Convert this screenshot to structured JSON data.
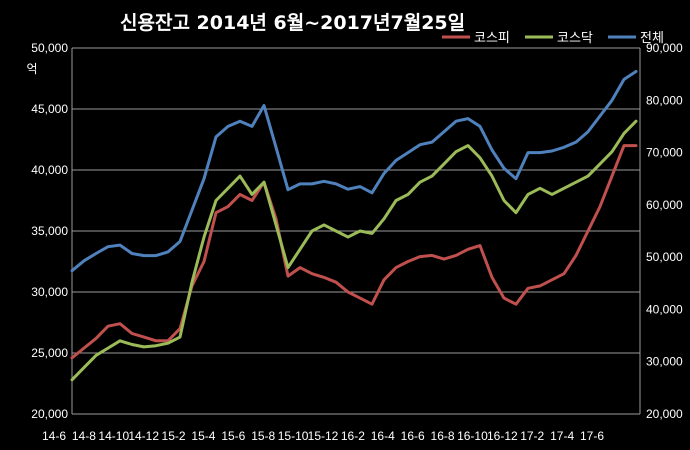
{
  "chart_data": {
    "type": "line",
    "title": "신용잔고 2014년 6월~2017년7월25일",
    "left_axis_unit": "억",
    "y_left": {
      "min": 20000,
      "max": 50000,
      "step": 5000,
      "tick_labels": [
        "20,000",
        "25,000",
        "30,000",
        "35,000",
        "40,000",
        "45,000",
        "50,000"
      ]
    },
    "y_right": {
      "min": 20000,
      "max": 90000,
      "step": 10000,
      "tick_labels": [
        "20,000",
        "30,000",
        "40,000",
        "50,000",
        "60,000",
        "70,000",
        "80,000",
        "90,000"
      ]
    },
    "x_ticks": [
      "14-6",
      "14-8",
      "14-10",
      "14-12",
      "15-2",
      "15-4",
      "15-6",
      "15-8",
      "15-10",
      "15-12",
      "16-2",
      "16-4",
      "16-6",
      "16-8",
      "16-10",
      "16-12",
      "17-2",
      "17-4",
      "17-6"
    ],
    "grid": true,
    "legend_position": "top-right",
    "series": [
      {
        "name": "코스피",
        "axis": "left",
        "color": "#c0504d",
        "values": [
          24600,
          25400,
          26200,
          27200,
          27400,
          26600,
          26300,
          26000,
          26000,
          27000,
          30500,
          32500,
          36500,
          37000,
          38000,
          37500,
          39000,
          36000,
          31300,
          32000,
          31500,
          31200,
          30800,
          30000,
          29500,
          29000,
          31000,
          32000,
          32500,
          32900,
          33000,
          32700,
          33000,
          33500,
          33800,
          31200,
          29500,
          29000,
          30300,
          30500,
          31000,
          31500,
          33000,
          35000,
          37000,
          39500,
          42000,
          42000
        ]
      },
      {
        "name": "코스닥",
        "axis": "left",
        "color": "#9bbb59",
        "values": [
          22800,
          23800,
          24800,
          25400,
          26000,
          25700,
          25500,
          25600,
          25800,
          26300,
          30800,
          34500,
          37500,
          38500,
          39500,
          38000,
          39000,
          35500,
          32000,
          33500,
          35000,
          35500,
          35000,
          34500,
          35000,
          34800,
          36000,
          37500,
          38000,
          39000,
          39500,
          40500,
          41500,
          42000,
          41000,
          39500,
          37500,
          36500,
          38000,
          38500,
          38000,
          38500,
          39000,
          39500,
          40500,
          41500,
          43000,
          44000
        ]
      },
      {
        "name": "전체",
        "axis": "right",
        "color": "#4f81bd",
        "values": [
          47400,
          49300,
          50700,
          52000,
          52300,
          50700,
          50300,
          50300,
          51000,
          53000,
          59000,
          65000,
          73000,
          75000,
          76000,
          75000,
          79000,
          71000,
          62900,
          64000,
          64000,
          64500,
          64000,
          63000,
          63500,
          62300,
          66000,
          68500,
          70000,
          71500,
          72000,
          74000,
          76000,
          76500,
          75000,
          70500,
          67000,
          65000,
          70000,
          70000,
          70300,
          71000,
          72000,
          74000,
          77000,
          80000,
          84000,
          85500
        ]
      }
    ]
  }
}
